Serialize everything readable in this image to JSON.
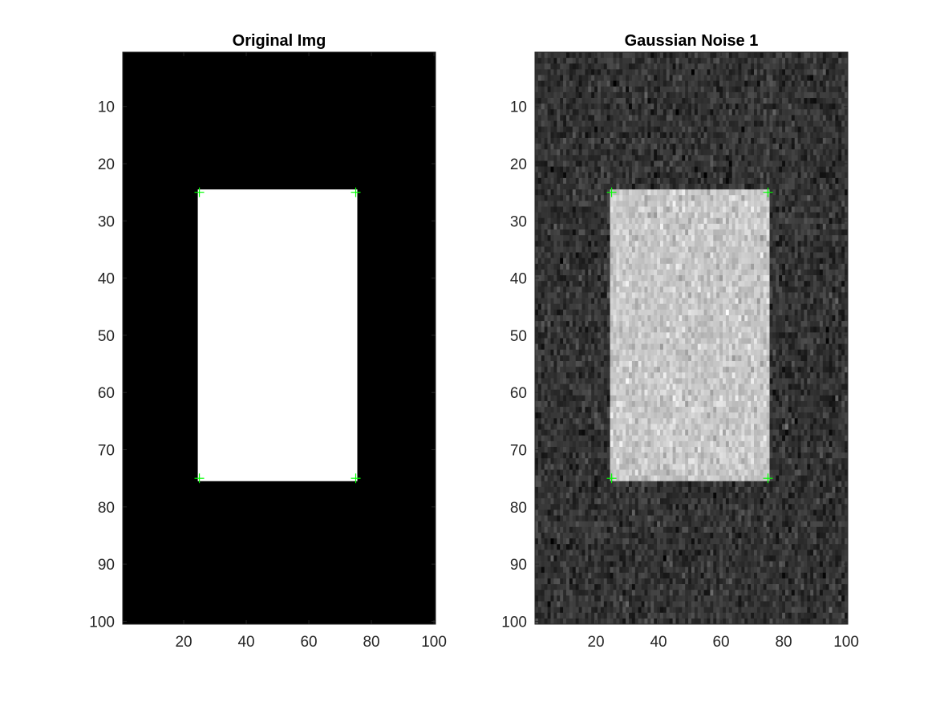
{
  "chart_data": [
    {
      "type": "heatmap",
      "title": "Original Img",
      "xlabel": "",
      "ylabel": "",
      "xlim": [
        0.5,
        100.5
      ],
      "ylim": [
        0.5,
        100.5
      ],
      "y_reversed": true,
      "xticks": [
        20,
        40,
        60,
        80,
        100
      ],
      "yticks": [
        10,
        20,
        30,
        40,
        50,
        60,
        70,
        80,
        90,
        100
      ],
      "colormap": "gray",
      "background_value": 0,
      "rectangle": {
        "x": [
          25,
          75
        ],
        "y": [
          25,
          75
        ],
        "value": 1
      },
      "noise": false,
      "corner_markers": [
        [
          25,
          25
        ],
        [
          75,
          25
        ],
        [
          25,
          75
        ],
        [
          75,
          75
        ]
      ],
      "marker_color": "#00ff00",
      "marker_symbol": "+"
    },
    {
      "type": "heatmap",
      "title": "Gaussian Noise 1",
      "xlabel": "",
      "ylabel": "",
      "xlim": [
        0.5,
        100.5
      ],
      "ylim": [
        0.5,
        100.5
      ],
      "y_reversed": true,
      "xticks": [
        20,
        40,
        60,
        80,
        100
      ],
      "yticks": [
        10,
        20,
        30,
        40,
        50,
        60,
        70,
        80,
        90,
        100
      ],
      "colormap": "gray",
      "background_value": 0.2,
      "rectangle": {
        "x": [
          25,
          75
        ],
        "y": [
          25,
          75
        ],
        "value": 0.78
      },
      "noise": true,
      "noise_sd": 0.06,
      "corner_markers": [
        [
          25,
          25
        ],
        [
          75,
          25
        ],
        [
          25,
          75
        ],
        [
          75,
          75
        ]
      ],
      "marker_color": "#00ff00",
      "marker_symbol": "+"
    }
  ]
}
